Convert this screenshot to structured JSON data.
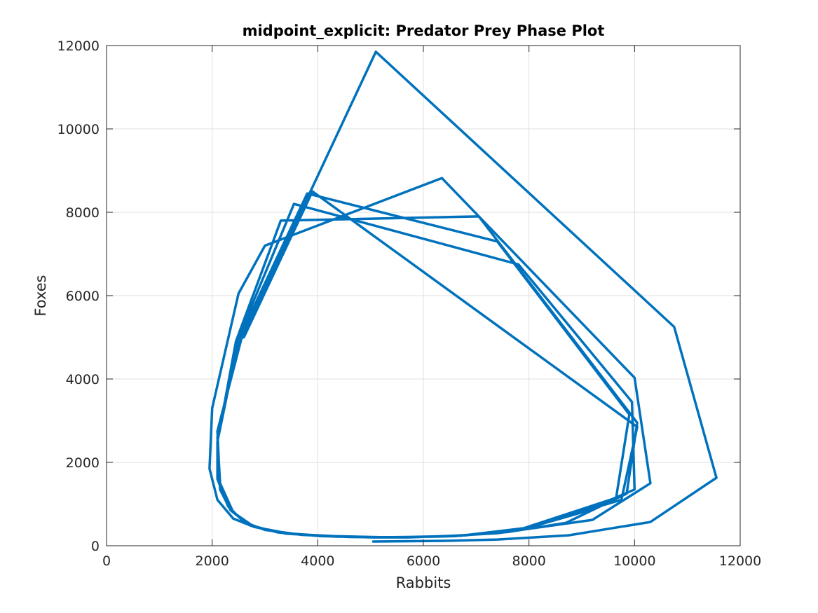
{
  "chart_data": {
    "type": "line",
    "title": "midpoint_explicit: Predator Prey Phase Plot",
    "xlabel": "Rabbits",
    "ylabel": "Foxes",
    "xlim": [
      0,
      12000
    ],
    "ylim": [
      0,
      12000
    ],
    "xticks": [
      0,
      2000,
      4000,
      6000,
      8000,
      10000,
      12000
    ],
    "yticks": [
      0,
      2000,
      4000,
      6000,
      8000,
      10000,
      12000
    ],
    "grid": true,
    "line_color": "#0072BD",
    "series": [
      {
        "points": [
          [
            5050,
            100
          ],
          [
            6500,
            120
          ],
          [
            7400,
            150
          ],
          [
            8750,
            250
          ],
          [
            10300,
            570
          ],
          [
            11550,
            1630
          ],
          [
            10750,
            5250
          ],
          [
            5100,
            11850
          ],
          [
            2550,
            4950
          ],
          [
            2100,
            2750
          ],
          [
            2150,
            1350
          ],
          [
            2350,
            850
          ],
          [
            2700,
            500
          ],
          [
            3250,
            320
          ],
          [
            4050,
            230
          ],
          [
            5050,
            200
          ],
          [
            6300,
            220
          ],
          [
            7400,
            300
          ],
          [
            9200,
            620
          ],
          [
            10300,
            1500
          ],
          [
            10000,
            4030
          ],
          [
            6350,
            8820
          ],
          [
            3000,
            7200
          ],
          [
            2500,
            6050
          ],
          [
            2000,
            3300
          ],
          [
            1950,
            1850
          ],
          [
            2100,
            1100
          ],
          [
            2400,
            650
          ],
          [
            2800,
            450
          ],
          [
            3400,
            300
          ],
          [
            4300,
            220
          ],
          [
            5300,
            200
          ],
          [
            6500,
            230
          ],
          [
            7600,
            330
          ],
          [
            8700,
            550
          ],
          [
            9850,
            1250
          ],
          [
            10050,
            2950
          ],
          [
            7050,
            7900
          ],
          [
            3300,
            7800
          ],
          [
            2450,
            4900
          ],
          [
            2100,
            2500
          ],
          [
            2100,
            1600
          ],
          [
            2300,
            950
          ],
          [
            2600,
            570
          ],
          [
            3000,
            380
          ],
          [
            3700,
            260
          ],
          [
            4600,
            210
          ],
          [
            5700,
            200
          ],
          [
            6800,
            250
          ],
          [
            7900,
            400
          ],
          [
            9000,
            800
          ],
          [
            10000,
            1350
          ],
          [
            9950,
            3450
          ],
          [
            7800,
            6750
          ],
          [
            3550,
            8200
          ],
          [
            2500,
            5000
          ],
          [
            2100,
            2600
          ],
          [
            2150,
            1500
          ],
          [
            2400,
            800
          ],
          [
            2800,
            450
          ],
          [
            3500,
            280
          ],
          [
            4400,
            220
          ],
          [
            5500,
            200
          ],
          [
            6700,
            240
          ],
          [
            7900,
            420
          ],
          [
            9650,
            1150
          ],
          [
            9900,
            3150
          ],
          [
            7400,
            7300
          ],
          [
            3800,
            8450
          ],
          [
            2500,
            4950
          ],
          [
            2100,
            2500
          ],
          [
            2150,
            1450
          ],
          [
            2400,
            800
          ],
          [
            2800,
            450
          ],
          [
            3400,
            290
          ],
          [
            4300,
            230
          ],
          [
            5400,
            200
          ],
          [
            6600,
            230
          ],
          [
            7800,
            380
          ],
          [
            9750,
            1100
          ],
          [
            10050,
            2850
          ],
          [
            3900,
            8500
          ],
          [
            2600,
            5000
          ]
        ]
      }
    ]
  }
}
